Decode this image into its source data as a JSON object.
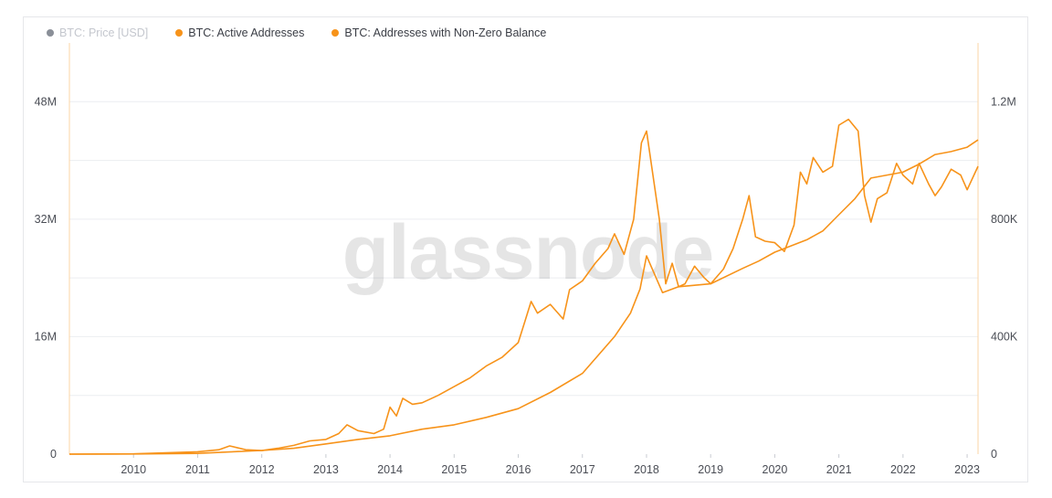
{
  "legend": {
    "items": [
      {
        "label": "BTC: Price [USD]",
        "color": "#8a8f98",
        "hidden": true
      },
      {
        "label": "BTC: Active Addresses",
        "color": "#f7931a",
        "hidden": false
      },
      {
        "label": "BTC: Addresses with Non-Zero Balance",
        "color": "#f7931a",
        "hidden": false
      }
    ]
  },
  "watermark": "glassnode",
  "chart_data": {
    "type": "line",
    "x_label_years": [
      2010,
      2011,
      2012,
      2013,
      2014,
      2015,
      2016,
      2017,
      2018,
      2019,
      2020,
      2021,
      2022,
      2023
    ],
    "xlim": [
      2009.0,
      2023.17
    ],
    "left_axis": {
      "ticks": [
        "0",
        "16M",
        "32M",
        "48M"
      ],
      "values": [
        0,
        16000000,
        32000000,
        48000000
      ],
      "ylim": [
        0,
        56000000
      ]
    },
    "right_axis": {
      "ticks": [
        "0",
        "400K",
        "800K",
        "1.2M"
      ],
      "values": [
        0,
        400000,
        800000,
        1200000
      ],
      "ylim": [
        0,
        1400000
      ]
    },
    "series": [
      {
        "name": "BTC: Addresses with Non-Zero Balance",
        "axis": "left",
        "color": "#f7931a",
        "points": [
          [
            2009.0,
            0
          ],
          [
            2010.0,
            20000
          ],
          [
            2011.0,
            100000
          ],
          [
            2011.5,
            300000
          ],
          [
            2012.0,
            500000
          ],
          [
            2012.5,
            800000
          ],
          [
            2013.0,
            1400000
          ],
          [
            2013.5,
            2000000
          ],
          [
            2014.0,
            2500000
          ],
          [
            2014.5,
            3400000
          ],
          [
            2015.0,
            4000000
          ],
          [
            2015.5,
            5000000
          ],
          [
            2016.0,
            6200000
          ],
          [
            2016.5,
            8400000
          ],
          [
            2017.0,
            11000000
          ],
          [
            2017.5,
            16000000
          ],
          [
            2017.75,
            19200000
          ],
          [
            2017.9,
            22500000
          ],
          [
            2018.0,
            27000000
          ],
          [
            2018.1,
            25000000
          ],
          [
            2018.25,
            22000000
          ],
          [
            2018.5,
            22800000
          ],
          [
            2018.75,
            23000000
          ],
          [
            2019.0,
            23200000
          ],
          [
            2019.5,
            25300000
          ],
          [
            2019.75,
            26300000
          ],
          [
            2020.0,
            27500000
          ],
          [
            2020.5,
            29200000
          ],
          [
            2020.75,
            30400000
          ],
          [
            2021.0,
            32600000
          ],
          [
            2021.25,
            34800000
          ],
          [
            2021.5,
            37600000
          ],
          [
            2021.75,
            38000000
          ],
          [
            2022.0,
            38400000
          ],
          [
            2022.25,
            39500000
          ],
          [
            2022.5,
            40800000
          ],
          [
            2022.75,
            41200000
          ],
          [
            2023.0,
            41800000
          ],
          [
            2023.17,
            42800000
          ]
        ]
      },
      {
        "name": "BTC: Active Addresses",
        "axis": "right",
        "color": "#f7931a",
        "points": [
          [
            2009.0,
            0
          ],
          [
            2010.0,
            1000
          ],
          [
            2011.0,
            8000
          ],
          [
            2011.33,
            15000
          ],
          [
            2011.5,
            28000
          ],
          [
            2011.75,
            15000
          ],
          [
            2012.0,
            12000
          ],
          [
            2012.25,
            20000
          ],
          [
            2012.5,
            30000
          ],
          [
            2012.75,
            45000
          ],
          [
            2013.0,
            50000
          ],
          [
            2013.2,
            70000
          ],
          [
            2013.33,
            100000
          ],
          [
            2013.5,
            80000
          ],
          [
            2013.75,
            70000
          ],
          [
            2013.9,
            85000
          ],
          [
            2014.0,
            160000
          ],
          [
            2014.1,
            130000
          ],
          [
            2014.2,
            190000
          ],
          [
            2014.35,
            170000
          ],
          [
            2014.5,
            175000
          ],
          [
            2014.75,
            200000
          ],
          [
            2015.0,
            230000
          ],
          [
            2015.25,
            260000
          ],
          [
            2015.5,
            300000
          ],
          [
            2015.75,
            330000
          ],
          [
            2016.0,
            380000
          ],
          [
            2016.1,
            450000
          ],
          [
            2016.2,
            520000
          ],
          [
            2016.3,
            480000
          ],
          [
            2016.5,
            510000
          ],
          [
            2016.7,
            460000
          ],
          [
            2016.8,
            560000
          ],
          [
            2017.0,
            590000
          ],
          [
            2017.2,
            650000
          ],
          [
            2017.4,
            700000
          ],
          [
            2017.5,
            750000
          ],
          [
            2017.65,
            680000
          ],
          [
            2017.8,
            800000
          ],
          [
            2017.92,
            1060000
          ],
          [
            2018.0,
            1100000
          ],
          [
            2018.1,
            950000
          ],
          [
            2018.2,
            800000
          ],
          [
            2018.3,
            580000
          ],
          [
            2018.4,
            650000
          ],
          [
            2018.5,
            570000
          ],
          [
            2018.6,
            580000
          ],
          [
            2018.75,
            640000
          ],
          [
            2018.9,
            600000
          ],
          [
            2019.0,
            580000
          ],
          [
            2019.2,
            630000
          ],
          [
            2019.35,
            700000
          ],
          [
            2019.5,
            800000
          ],
          [
            2019.6,
            880000
          ],
          [
            2019.7,
            740000
          ],
          [
            2019.85,
            725000
          ],
          [
            2020.0,
            720000
          ],
          [
            2020.15,
            690000
          ],
          [
            2020.3,
            780000
          ],
          [
            2020.4,
            960000
          ],
          [
            2020.5,
            920000
          ],
          [
            2020.6,
            1010000
          ],
          [
            2020.75,
            960000
          ],
          [
            2020.9,
            980000
          ],
          [
            2021.0,
            1120000
          ],
          [
            2021.15,
            1140000
          ],
          [
            2021.3,
            1100000
          ],
          [
            2021.4,
            880000
          ],
          [
            2021.5,
            790000
          ],
          [
            2021.6,
            870000
          ],
          [
            2021.75,
            890000
          ],
          [
            2021.9,
            990000
          ],
          [
            2022.0,
            950000
          ],
          [
            2022.15,
            920000
          ],
          [
            2022.25,
            990000
          ],
          [
            2022.4,
            920000
          ],
          [
            2022.5,
            880000
          ],
          [
            2022.6,
            910000
          ],
          [
            2022.75,
            970000
          ],
          [
            2022.9,
            950000
          ],
          [
            2023.0,
            900000
          ],
          [
            2023.17,
            980000
          ]
        ]
      }
    ],
    "grid": "horizontal",
    "legend_position": "top-left"
  }
}
